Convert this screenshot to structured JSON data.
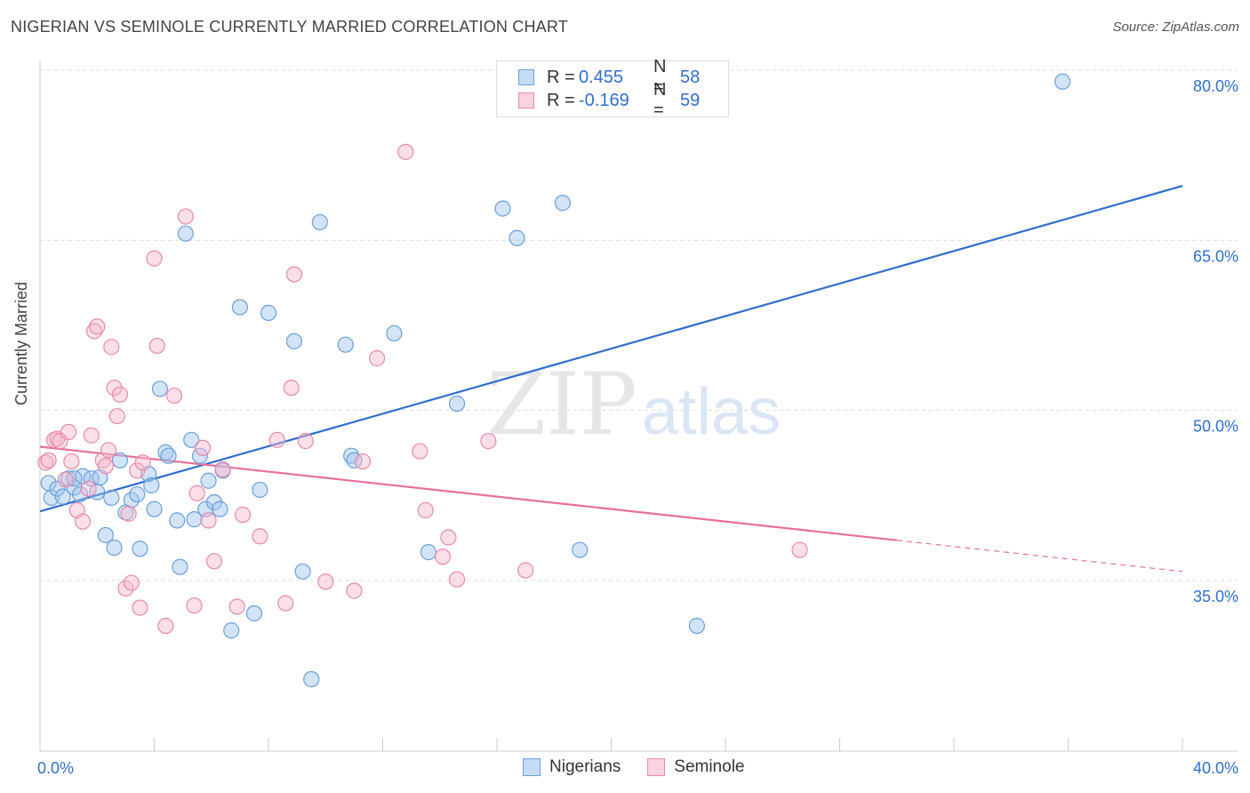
{
  "title": "NIGERIAN VS SEMINOLE CURRENTLY MARRIED CORRELATION CHART",
  "source": "Source: ZipAtlas.com",
  "watermark": {
    "zip": "ZIP",
    "atlas": "atlas"
  },
  "legend_top": {
    "rows": [
      {
        "r_label": "R =",
        "r_value": "0.455",
        "n_label": "N =",
        "n_value": "58"
      },
      {
        "r_label": "R =",
        "r_value": "-0.169",
        "n_label": "N =",
        "n_value": "59"
      }
    ]
  },
  "legend_bottom": [
    "Nigerians",
    "Seminole"
  ],
  "chart_data": {
    "type": "scatter",
    "title": "NIGERIAN VS SEMINOLE CURRENTLY MARRIED CORRELATION CHART",
    "xlabel": "",
    "ylabel": "Currently Married",
    "xlim": [
      0,
      40
    ],
    "ylim": [
      22,
      82
    ],
    "x_tick_labels": [
      {
        "value": 0,
        "label": "0.0%"
      },
      {
        "value": 40,
        "label": "40.0%"
      }
    ],
    "y_tick_labels": [
      {
        "value": 35,
        "label": "35.0%"
      },
      {
        "value": 50,
        "label": "50.0%"
      },
      {
        "value": 65,
        "label": "65.0%"
      },
      {
        "value": 80,
        "label": "80.0%"
      }
    ],
    "x_minor_ticks": [
      0,
      4,
      8,
      12,
      16,
      20,
      24,
      28,
      32,
      36,
      40
    ],
    "grid": "horizontal dashed",
    "legend": "top-center and bottom-center",
    "series": [
      {
        "name": "Nigerians",
        "color": "#9ec3ee",
        "edge": "#6a9fdc",
        "trend_color": "#2f6fd0",
        "r": 0.455,
        "n": 58,
        "trend": {
          "x0": 0,
          "y0": 41.1,
          "x1": 40,
          "y1": 69.8,
          "solid_until": 40
        },
        "points": [
          [
            0.3,
            43.6
          ],
          [
            0.4,
            42.3
          ],
          [
            0.6,
            43.1
          ],
          [
            0.8,
            42.4
          ],
          [
            1.0,
            44.0
          ],
          [
            1.2,
            43.2
          ],
          [
            1.4,
            42.6
          ],
          [
            1.5,
            44.2
          ],
          [
            1.8,
            44.0
          ],
          [
            2.0,
            42.8
          ],
          [
            2.1,
            44.1
          ],
          [
            2.3,
            39.0
          ],
          [
            2.6,
            37.9
          ],
          [
            2.8,
            45.6
          ],
          [
            3.0,
            41.0
          ],
          [
            3.2,
            42.1
          ],
          [
            3.4,
            42.6
          ],
          [
            3.5,
            37.8
          ],
          [
            3.8,
            44.4
          ],
          [
            3.9,
            43.4
          ],
          [
            4.0,
            41.3
          ],
          [
            4.2,
            51.9
          ],
          [
            4.4,
            46.3
          ],
          [
            4.5,
            46.0
          ],
          [
            4.8,
            40.3
          ],
          [
            4.9,
            36.2
          ],
          [
            5.1,
            65.6
          ],
          [
            5.3,
            47.4
          ],
          [
            5.4,
            40.4
          ],
          [
            5.6,
            46.0
          ],
          [
            5.8,
            41.3
          ],
          [
            5.9,
            43.8
          ],
          [
            6.1,
            41.9
          ],
          [
            6.3,
            41.3
          ],
          [
            6.4,
            44.7
          ],
          [
            6.7,
            30.6
          ],
          [
            7.0,
            59.1
          ],
          [
            7.5,
            32.1
          ],
          [
            7.7,
            43.0
          ],
          [
            8.0,
            58.6
          ],
          [
            8.9,
            56.1
          ],
          [
            9.2,
            35.8
          ],
          [
            9.5,
            26.3
          ],
          [
            9.8,
            66.6
          ],
          [
            10.7,
            55.8
          ],
          [
            10.9,
            46.0
          ],
          [
            11.0,
            45.6
          ],
          [
            12.4,
            56.8
          ],
          [
            13.6,
            37.5
          ],
          [
            14.6,
            50.6
          ],
          [
            16.2,
            67.8
          ],
          [
            16.7,
            65.2
          ],
          [
            18.3,
            68.3
          ],
          [
            18.9,
            37.7
          ],
          [
            23.0,
            31.0
          ],
          [
            35.8,
            79.0
          ],
          [
            1.2,
            44.0
          ],
          [
            2.5,
            42.3
          ]
        ]
      },
      {
        "name": "Seminole",
        "color": "#f7b9cc",
        "edge": "#e88aa8",
        "trend_color": "#e8709a",
        "r": -0.169,
        "n": 59,
        "trend": {
          "x0": 0,
          "y0": 46.8,
          "x1": 40,
          "y1": 35.8,
          "solid_until": 30.0
        },
        "points": [
          [
            0.2,
            45.4
          ],
          [
            0.3,
            45.6
          ],
          [
            0.5,
            47.4
          ],
          [
            0.6,
            47.5
          ],
          [
            0.7,
            47.3
          ],
          [
            0.9,
            43.9
          ],
          [
            1.0,
            48.1
          ],
          [
            1.1,
            45.5
          ],
          [
            1.3,
            41.2
          ],
          [
            1.5,
            40.2
          ],
          [
            1.7,
            43.1
          ],
          [
            1.8,
            47.8
          ],
          [
            1.9,
            57.0
          ],
          [
            2.0,
            57.4
          ],
          [
            2.2,
            45.6
          ],
          [
            2.3,
            45.1
          ],
          [
            2.4,
            46.5
          ],
          [
            2.5,
            55.6
          ],
          [
            2.6,
            52.0
          ],
          [
            2.7,
            49.5
          ],
          [
            2.8,
            51.4
          ],
          [
            3.0,
            34.3
          ],
          [
            3.1,
            40.9
          ],
          [
            3.2,
            34.8
          ],
          [
            3.4,
            44.7
          ],
          [
            3.5,
            32.6
          ],
          [
            3.6,
            45.4
          ],
          [
            4.0,
            63.4
          ],
          [
            4.1,
            55.7
          ],
          [
            4.4,
            31.0
          ],
          [
            4.7,
            51.3
          ],
          [
            5.1,
            67.1
          ],
          [
            5.4,
            32.8
          ],
          [
            5.5,
            42.7
          ],
          [
            5.7,
            46.7
          ],
          [
            5.9,
            40.3
          ],
          [
            6.1,
            36.7
          ],
          [
            6.4,
            44.8
          ],
          [
            6.9,
            32.7
          ],
          [
            7.1,
            40.8
          ],
          [
            7.7,
            38.9
          ],
          [
            8.3,
            47.4
          ],
          [
            8.6,
            33.0
          ],
          [
            8.8,
            52.0
          ],
          [
            8.9,
            62.0
          ],
          [
            9.3,
            47.3
          ],
          [
            10.0,
            34.9
          ],
          [
            11.0,
            34.1
          ],
          [
            11.3,
            45.5
          ],
          [
            11.8,
            54.6
          ],
          [
            12.8,
            72.8
          ],
          [
            13.3,
            46.4
          ],
          [
            13.5,
            41.2
          ],
          [
            14.1,
            37.1
          ],
          [
            14.3,
            38.8
          ],
          [
            14.6,
            35.1
          ],
          [
            15.7,
            47.3
          ],
          [
            17.0,
            35.9
          ],
          [
            26.6,
            37.7
          ]
        ]
      }
    ]
  }
}
